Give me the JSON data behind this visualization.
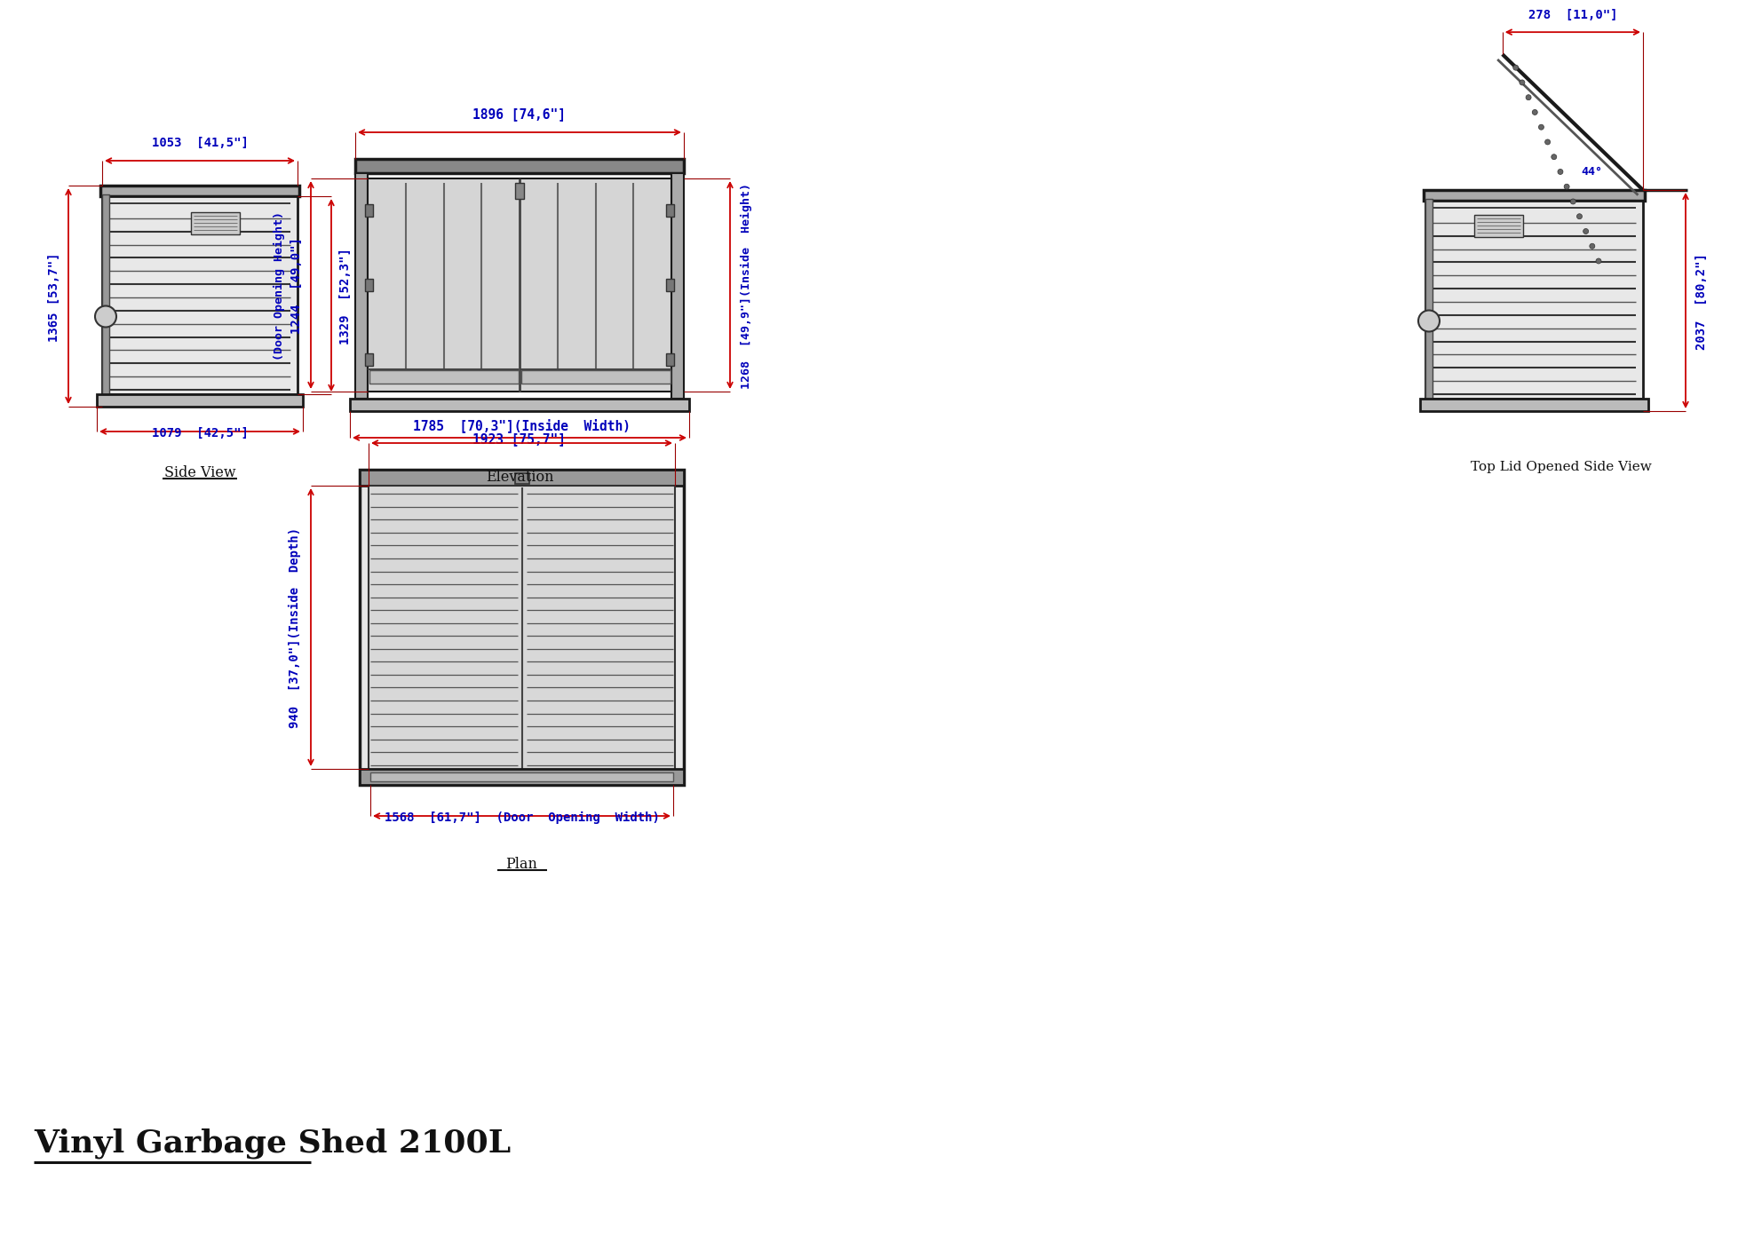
{
  "background_color": "#ffffff",
  "line_color": "#1a1a1a",
  "dim_color_red": "#cc0000",
  "dim_color_blue": "#0000bb",
  "title": "Vinyl Garbage Shed 2100L",
  "side_view_label": "Side View",
  "elevation_label": "Elevation",
  "top_lid_label": "Top Lid Opened Side View",
  "plan_label": "Plan",
  "dims": {
    "side_top_width": "1053  [41,5\"]",
    "side_height": "1365 [53,7\"]",
    "side_inner_height": "1329  [52,3\"]",
    "side_bottom_width": "1079  [42,5\"]",
    "elev_top_width": "1896 [74,6\"]",
    "elev_bottom_width": "1923 [75,7\"]",
    "elev_door_height": "1244  [49,0\"]",
    "elev_door_label": "(Door Opening Height)",
    "elev_inner_height": "1268  [49,9\"](Inside  Height)",
    "top_lid_width": "278  [11,0\"]",
    "top_lid_height": "2037  [80,2\"]",
    "plan_inner_width": "1785  [70,3\"](Inside  Width)",
    "plan_inner_depth": "940  [37,0\"](Inside  Depth)",
    "plan_door_width": "1568  [61,7\"]  (Door  Opening  Width)"
  }
}
